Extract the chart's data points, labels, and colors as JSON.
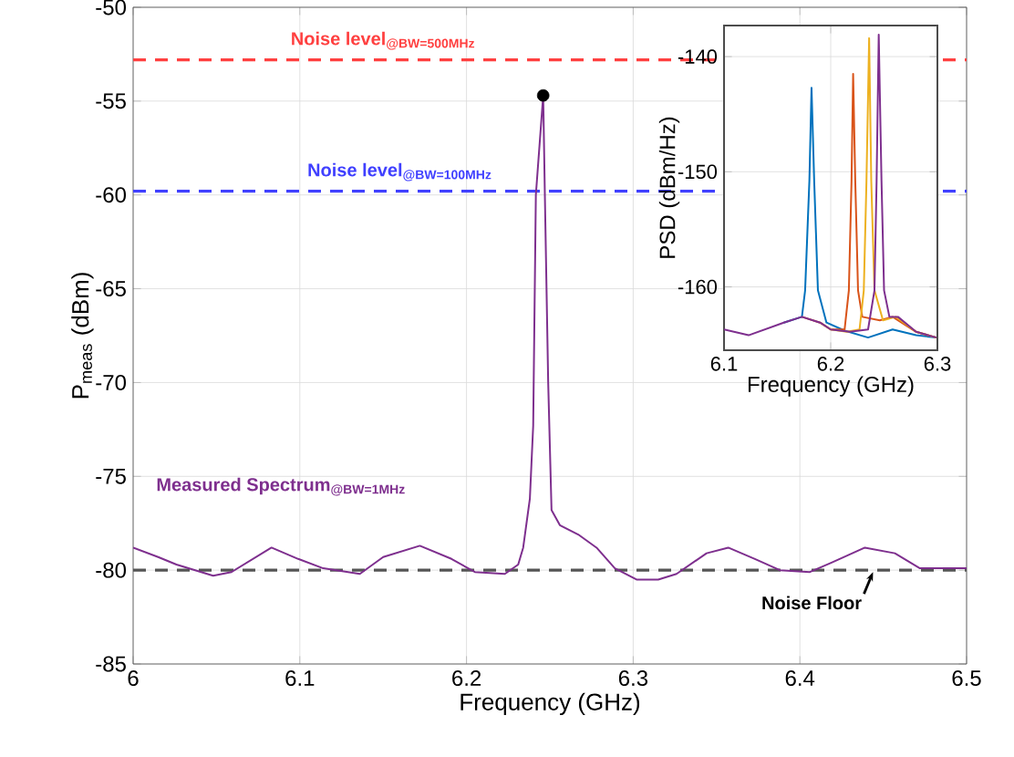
{
  "chart_data": [
    {
      "type": "line",
      "xlabel": "Frequency (GHz)",
      "ylabel": "P$_{meas}$ (dBm)",
      "xlim": [
        6,
        6.5
      ],
      "ylim": [
        -85,
        -50
      ],
      "xticks": [
        6,
        6.1,
        6.2,
        6.3,
        6.4,
        6.5
      ],
      "yticks": [
        -85,
        -80,
        -75,
        -70,
        -65,
        -60,
        -55,
        -50
      ],
      "grid": true,
      "series": [
        {
          "name": "Measured Spectrum$_{@BW=1MHz}$",
          "color": "#7e2f8e",
          "x": [
            6.0,
            6.015,
            6.026,
            6.048,
            6.059,
            6.083,
            6.099,
            6.114,
            6.136,
            6.15,
            6.172,
            6.191,
            6.205,
            6.223,
            6.231,
            6.234,
            6.238,
            6.24,
            6.2416,
            6.246,
            6.247,
            6.249,
            6.251,
            6.256,
            6.267,
            6.278,
            6.289,
            6.302,
            6.315,
            6.326,
            6.344,
            6.357,
            6.373,
            6.388,
            6.406,
            6.419,
            6.439,
            6.457,
            6.472,
            6.486,
            6.5
          ],
          "values": [
            -78.8,
            -79.3,
            -79.7,
            -80.3,
            -80.1,
            -78.8,
            -79.4,
            -79.9,
            -80.2,
            -79.3,
            -78.7,
            -79.4,
            -80.1,
            -80.2,
            -79.7,
            -78.8,
            -76.2,
            -72.3,
            -60,
            -54.7,
            -60,
            -70,
            -76.8,
            -77.6,
            -78.1,
            -78.8,
            -79.9,
            -80.5,
            -80.5,
            -80.2,
            -79.1,
            -78.8,
            -79.4,
            -80,
            -80.1,
            -79.6,
            -78.8,
            -79.1,
            -79.9,
            -79.9,
            -79.9
          ]
        },
        {
          "type": "scatter",
          "color": "#000000",
          "x": [
            6.246
          ],
          "values": [
            -54.7
          ]
        }
      ],
      "ref_lines": [
        {
          "axis": "y",
          "value": -52.8,
          "color": "#ff4040",
          "line_style": "dashed"
        },
        {
          "axis": "y",
          "value": -59.8,
          "color": "#4040ff",
          "line_style": "dashed"
        },
        {
          "axis": "y",
          "value": -80,
          "color": "#555555",
          "line_style": "dashed"
        }
      ],
      "annotations": [
        {
          "text": "Noise level$_{@BW=500MHz}$",
          "x": 6.15,
          "y": -52.8
        },
        {
          "text": "Noise level$_{@BW=100MHz}$",
          "x": 6.16,
          "y": -59.8
        },
        {
          "text": "Noise Floor",
          "x": 6.445,
          "y": -80
        }
      ]
    },
    {
      "type": "line",
      "xlabel": "Frequency (GHz)",
      "ylabel": "PSD (dBm/Hz)",
      "xlim": [
        6.1,
        6.3
      ],
      "ylim": [
        -165.5,
        -137.3
      ],
      "xticks": [
        6.1,
        6.2,
        6.3
      ],
      "yticks": [
        -160,
        -150,
        -140
      ],
      "grid": true,
      "series": [
        {
          "color": "#0072bd",
          "x": [
            6.156,
            6.173,
            6.176,
            6.18,
            6.182,
            6.1845,
            6.188,
            6.196,
            6.213,
            6.235,
            6.258,
            6.28,
            6.299
          ],
          "values": [
            -163.1,
            -162.6,
            -160.3,
            -150.8,
            -142.7,
            -150.8,
            -160.3,
            -163.1,
            -163.8,
            -164.4,
            -163.7,
            -164.2,
            -164.4
          ]
        },
        {
          "color": "#d95319",
          "x": [
            6.173,
            6.19,
            6.2,
            6.213,
            6.217,
            6.2195,
            6.221,
            6.223,
            6.2256,
            6.2296,
            6.246,
            6.258,
            6.28,
            6.299
          ],
          "values": [
            -162.6,
            -163.1,
            -163.7,
            -163.7,
            -160.3,
            -150.8,
            -141.5,
            -150.8,
            -160.3,
            -162.6,
            -162.9,
            -162.6,
            -163.9,
            -164.4
          ]
        },
        {
          "color": "#edb120",
          "x": [
            6.19,
            6.2,
            6.215,
            6.227,
            6.231,
            6.2335,
            6.236,
            6.238,
            6.241,
            6.249,
            6.261,
            6.28,
            6.299
          ],
          "values": [
            -163.1,
            -163.7,
            -163.9,
            -163.7,
            -160.3,
            -150.8,
            -138.4,
            -150.8,
            -160.3,
            -162.9,
            -162.6,
            -163.9,
            -164.4
          ]
        },
        {
          "color": "#7e2f8e",
          "x": [
            6.1,
            6.123,
            6.156,
            6.173,
            6.19,
            6.2,
            6.218,
            6.235,
            6.241,
            6.243,
            6.245,
            6.2476,
            6.25,
            6.255,
            6.263,
            6.28,
            6.299
          ],
          "values": [
            -163.7,
            -164.2,
            -163.1,
            -162.6,
            -163.1,
            -163.7,
            -163.9,
            -163.7,
            -160.3,
            -150.8,
            -138.1,
            -150.8,
            -160.3,
            -162.6,
            -162.6,
            -163.9,
            -164.4
          ]
        }
      ]
    }
  ]
}
